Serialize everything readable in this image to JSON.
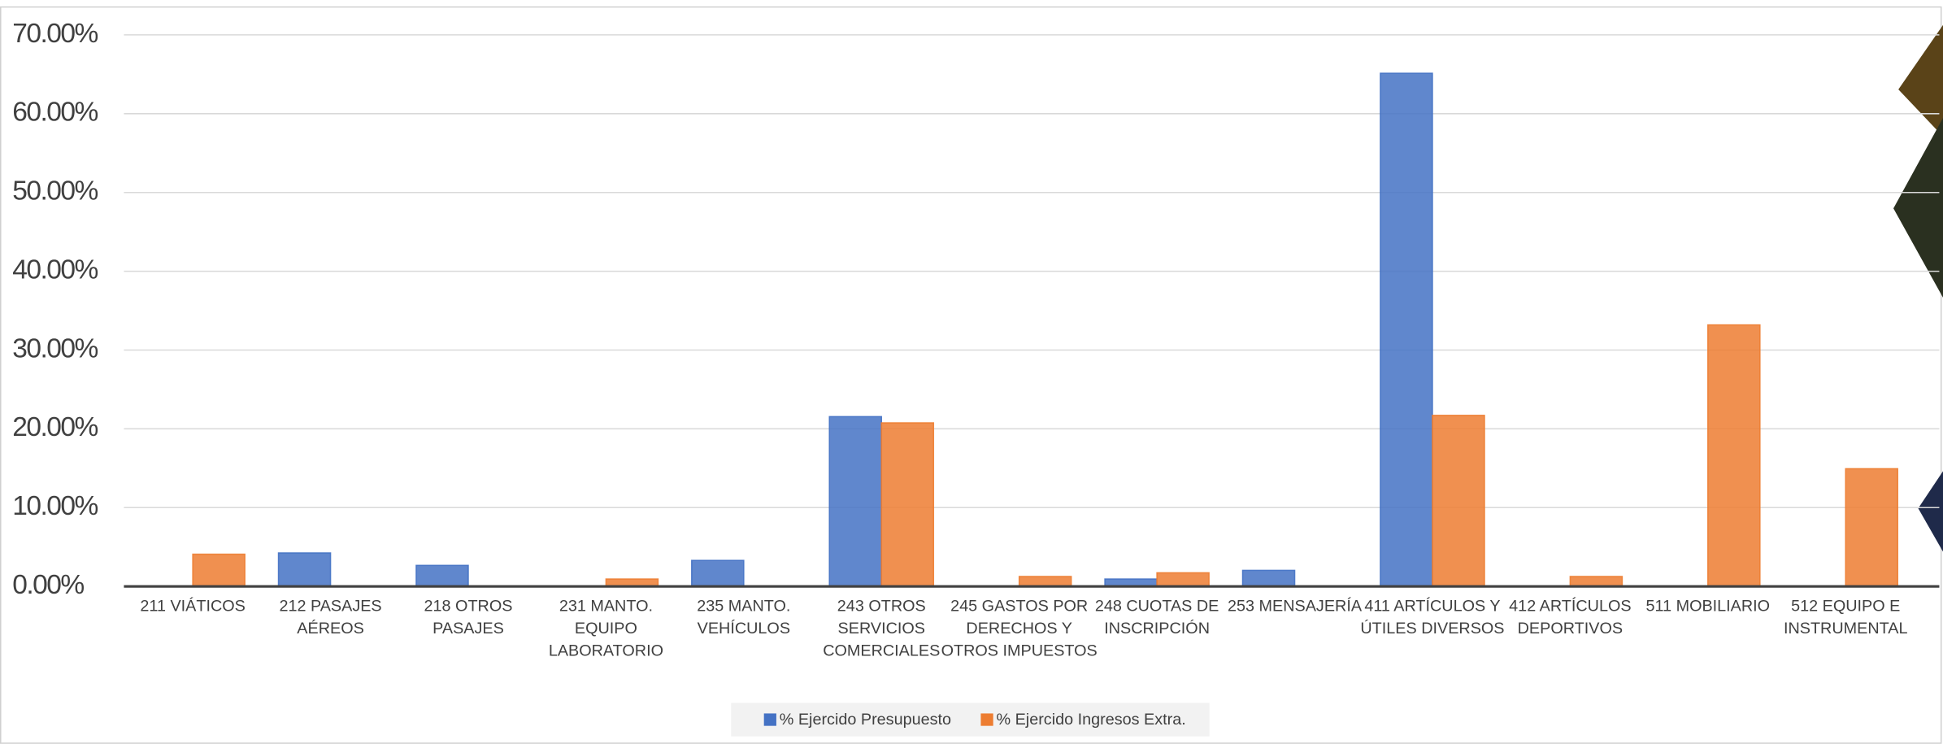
{
  "chart_data": {
    "type": "bar",
    "categories": [
      "211 VIÁTICOS",
      "212 PASAJES AÉREOS",
      "218 OTROS PASAJES",
      "231 MANTO. EQUIPO LABORATORIO",
      "235 MANTO. VEHÍCULOS",
      "243 OTROS SERVICIOS COMERCIALES",
      "245 GASTOS POR DERECHOS Y OTROS IMPUESTOS",
      "248 CUOTAS DE INSCRIPCIÓN",
      "253 MENSAJERÍA",
      "411 ARTÍCULOS Y ÚTILES DIVERSOS",
      "412 ARTÍCULOS DEPORTIVOS",
      "511 MOBILIARIO",
      "512 EQUIPO E INSTRUMENTAL"
    ],
    "series": [
      {
        "name": "% Ejercido Presupuesto",
        "color": "#4472c4",
        "values": [
          0,
          4.25,
          2.67,
          0,
          3.3,
          21.55,
          0,
          0.94,
          2.04,
          65.13,
          0,
          0,
          0
        ]
      },
      {
        "name": "% Ejercido Ingresos Extra.",
        "color": "#ed7d31",
        "values": [
          4.09,
          0,
          0,
          0.94,
          0,
          20.76,
          1.26,
          1.73,
          0,
          21.71,
          1.26,
          33.19,
          14.94
        ]
      }
    ],
    "ylim": [
      0,
      70
    ],
    "yticks": [
      {
        "value": 0,
        "label": "0.00%"
      },
      {
        "value": 10,
        "label": "10.00%"
      },
      {
        "value": 20,
        "label": "20.00%"
      },
      {
        "value": 30,
        "label": "30.00%"
      },
      {
        "value": 40,
        "label": "40.00%"
      },
      {
        "value": 50,
        "label": "50.00%"
      },
      {
        "value": 60,
        "label": "60.00%"
      },
      {
        "value": 70,
        "label": "70.00%"
      }
    ],
    "grid": true,
    "legend": "bottom"
  }
}
